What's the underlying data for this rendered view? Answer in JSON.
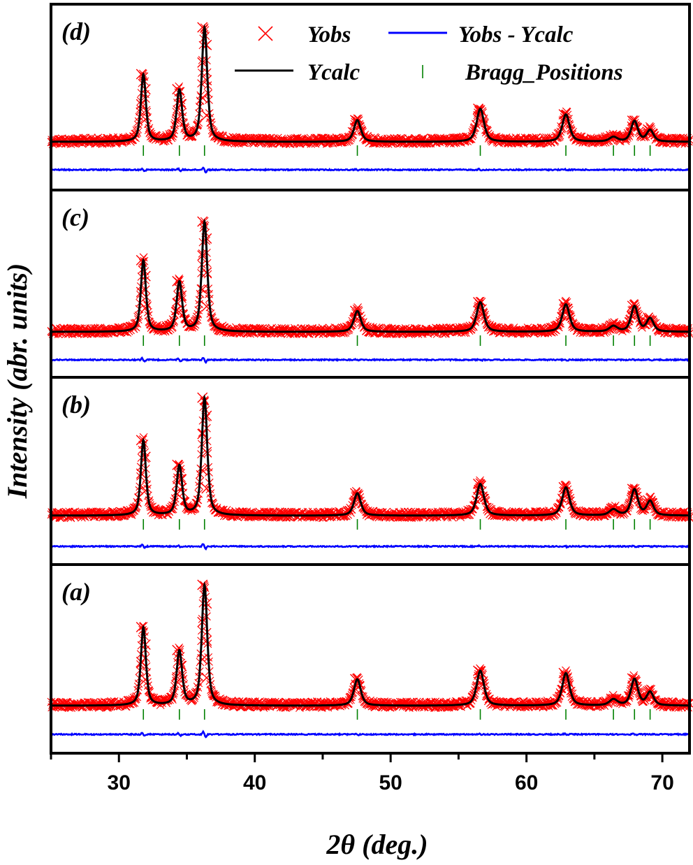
{
  "chart_data": {
    "type": "line",
    "xlabel": "2θ (deg.)",
    "ylabel": "Intensity (abr. units)",
    "xlim": [
      25,
      72
    ],
    "x_ticks": [
      30,
      40,
      50,
      60,
      70
    ],
    "x_tick_labels": [
      "30",
      "40",
      "50",
      "60",
      "70"
    ],
    "y_ticks_shown": false,
    "grid": false,
    "legend": {
      "placement": "top (panel d)",
      "entries": [
        {
          "name": "Yobs",
          "marker": "x",
          "color": "#ff0000"
        },
        {
          "name": "Yobs - Ycalc",
          "style": "line",
          "color": "#0000ff"
        },
        {
          "name": "Ycalc",
          "style": "line",
          "color": "#000000"
        },
        {
          "name": "Bragg_Positions",
          "marker": "|",
          "color": "#008000"
        }
      ]
    },
    "bragg_positions": [
      31.8,
      34.45,
      36.3,
      47.55,
      56.6,
      62.9,
      66.4,
      67.95,
      69.1
    ],
    "panels": [
      {
        "label": "(d)",
        "peak_heights": [
          0.59,
          0.45,
          1.0,
          0.19,
          0.29,
          0.24,
          0.04,
          0.18,
          0.1
        ]
      },
      {
        "label": "(c)",
        "peak_heights": [
          0.65,
          0.45,
          1.0,
          0.19,
          0.27,
          0.25,
          0.05,
          0.23,
          0.12
        ]
      },
      {
        "label": "(b)",
        "peak_heights": [
          0.64,
          0.42,
          1.0,
          0.19,
          0.27,
          0.24,
          0.05,
          0.22,
          0.12
        ]
      },
      {
        "label": "(a)",
        "peak_heights": [
          0.65,
          0.45,
          1.0,
          0.22,
          0.29,
          0.27,
          0.05,
          0.22,
          0.11
        ]
      }
    ]
  }
}
